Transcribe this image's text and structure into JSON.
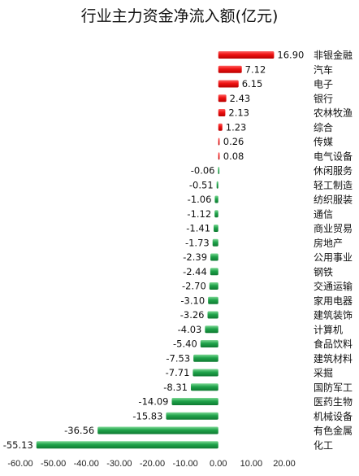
{
  "chart_data": {
    "type": "bar",
    "orientation": "horizontal",
    "title": "行业主力资金净流入额(亿元)",
    "categories": [
      "非银金融",
      "汽车",
      "电子",
      "银行",
      "农林牧渔",
      "综合",
      "传媒",
      "电气设备",
      "休闲服务",
      "轻工制造",
      "纺织服装",
      "通信",
      "商业贸易",
      "房地产",
      "公用事业",
      "钢铁",
      "交通运输",
      "家用电器",
      "建筑装饰",
      "计算机",
      "食品饮料",
      "建筑材料",
      "采掘",
      "国防军工",
      "医药生物",
      "机械设备",
      "有色金属",
      "化工"
    ],
    "values": [
      16.9,
      7.12,
      6.15,
      2.43,
      2.13,
      1.23,
      0.26,
      0.08,
      -0.06,
      -0.51,
      -1.06,
      -1.12,
      -1.41,
      -1.73,
      -2.39,
      -2.44,
      -2.7,
      -3.1,
      -3.26,
      -4.03,
      -5.4,
      -7.53,
      -7.71,
      -8.31,
      -14.09,
      -15.83,
      -36.56,
      -55.13
    ],
    "value_labels": [
      "16.90",
      "7.12",
      "6.15",
      "2.43",
      "2.13",
      "1.23",
      "0.26",
      "0.08",
      "-0.06",
      "-0.51",
      "-1.06",
      "-1.12",
      "-1.41",
      "-1.73",
      "-2.39",
      "-2.44",
      "-2.70",
      "-3.10",
      "-3.26",
      "-4.03",
      "-5.40",
      "-7.53",
      "-7.71",
      "-8.31",
      "-14.09",
      "-15.83",
      "-36.56",
      "-55.13"
    ],
    "xlim": [
      -60,
      20
    ],
    "xticks": [
      -60,
      -50,
      -40,
      -30,
      -20,
      -10,
      0,
      10,
      20
    ],
    "xtick_labels": [
      "-60.00",
      "-50.00",
      "-40.00",
      "-30.00",
      "-20.00",
      "-10.00",
      "0.00",
      "10.00",
      "20.00"
    ],
    "grid": false,
    "colors": {
      "positive": "#ee1111",
      "negative": "#1fa34a"
    }
  }
}
